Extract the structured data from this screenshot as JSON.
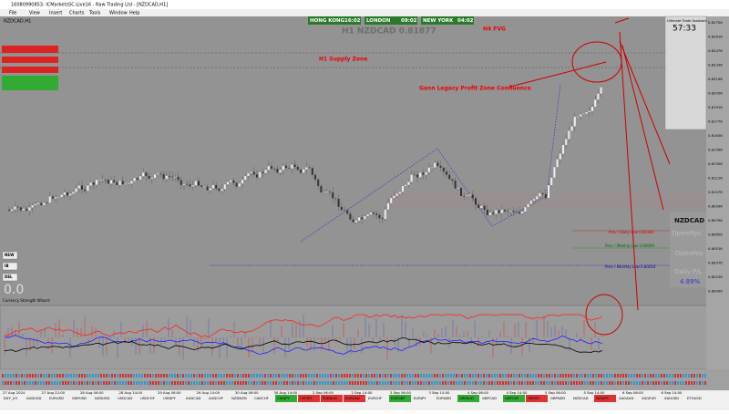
{
  "window": {
    "title": "16080990853: ICMarketsSC-Live16 - Raw Trading Ltd - [NZDCAD,H1]"
  },
  "menu": [
    "File",
    "View",
    "Insert",
    "Charts",
    "Tools",
    "Window",
    "Help"
  ],
  "sessions": [
    {
      "name": "HONG KONG",
      "time": "16:02"
    },
    {
      "name": "LONDON",
      "time": "09:02"
    },
    {
      "name": "NEW YORK",
      "time": "04:02"
    }
  ],
  "chart": {
    "symbol_label": "H1 NZDCAD 0.81877",
    "corner_label": "NZDCAD,H1",
    "annotations": [
      "H4 FVG",
      "H1 Supply Zone",
      "Gann Legacy Profit Zone Confluence"
    ],
    "levels": [
      "Prev / Daily Low 0.80381",
      "Prev / Weekly Low 0.80090",
      "Prev / Monthly Low 0.80014"
    ],
    "price_ticks": [
      "0.82756",
      "0.82616",
      "0.82476",
      "0.82336",
      "0.82196",
      "0.82056",
      "0.81916",
      "0.81776",
      "0.81636",
      "0.81496",
      "0.81356",
      "0.81216",
      "0.81076",
      "0.80936",
      "0.80796",
      "0.80656",
      "0.80516",
      "0.80376",
      "0.80236",
      "0.80096"
    ],
    "time_ticks": [
      "27 Aug 2024",
      "27 Aug 22:00",
      "28 Aug 06:00",
      "28 Aug 14:00",
      "29 Aug 06:00",
      "29 Aug 14:00",
      "30 Aug 06:00",
      "30 Aug 14:00",
      "2 Sep 06:00",
      "2 Sep 14:00",
      "3 Sep 06:00",
      "3 Sep 14:00",
      "4 Sep 06:00",
      "4 Sep 14:00",
      "5 Sep 06:00",
      "5 Sep 14:00",
      "6 Sep 06:00",
      "6 Sep 14:00"
    ]
  },
  "panel": {
    "title": "Ultimate Trade Assistant",
    "timer": "57:33"
  },
  "account_box": {
    "symbol": "NZDCAD",
    "open_pips": "OpenPips",
    "open_pos": "OpenPos",
    "daily_pl": "Daily P/L",
    "pct": "4.89%"
  },
  "left_buttons": [
    "NEW",
    "IB",
    "DEL"
  ],
  "pnl": "0.0",
  "indicator": {
    "name": "Currency Strength Wizard"
  },
  "tabs": [
    "DXY_U3",
    "AUDUSD",
    "EURUSD",
    "GBPUSD",
    "NZDUSD",
    "USDCAD",
    "USDCHF",
    "USDJPY",
    "AUDCAD",
    "AUDCHF",
    "NZDNZD",
    "CADCHF",
    "CADJPY",
    "CHFJPY",
    "EURAUD",
    "EURCAD",
    "EURCHF",
    "EURGBP",
    "EURJPY",
    "EURNZD",
    "GBPAUD",
    "GBPCAD",
    "GBPCHF",
    "GBPJPY",
    "GBPNZD",
    "NZDCAD",
    "NZDJPY",
    "XAGAUD",
    "XAGEUR",
    "XAUUSD",
    "ETHUSD"
  ]
}
